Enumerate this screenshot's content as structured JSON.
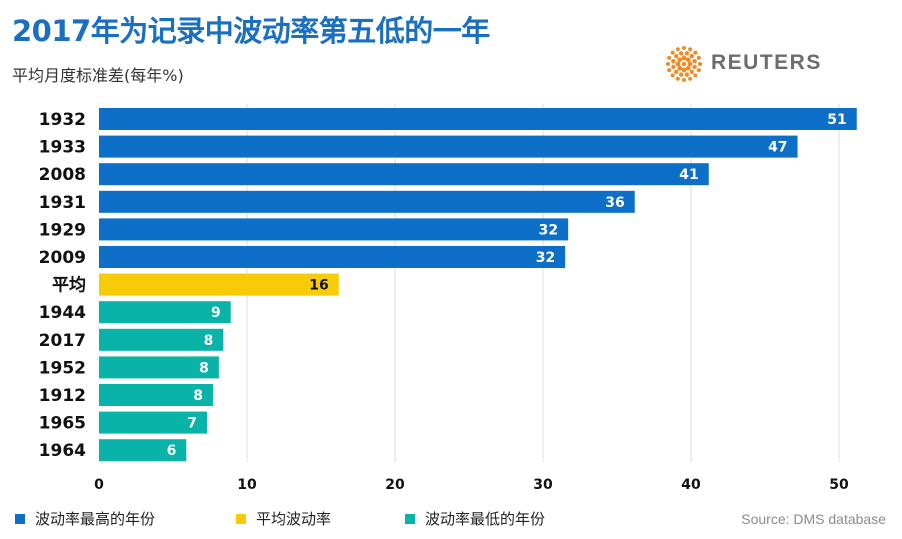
{
  "header": {
    "title": "2017年为记录中波动率第五低的一年",
    "subtitle": "平均月度标准差(每年%)"
  },
  "brand": {
    "logo_icon": "reuters-dots-icon",
    "name": "REUTERS"
  },
  "legend": {
    "items": [
      {
        "label": "波动率最高的年份",
        "color": "#0d6fc7"
      },
      {
        "label": "平均波动率",
        "color": "#f7cc06"
      },
      {
        "label": "波动率最低的年份",
        "color": "#0ab3a8"
      }
    ]
  },
  "source": "Source: DMS database",
  "chart_data": {
    "type": "bar",
    "orientation": "horizontal",
    "title": "2017年为记录中波动率第五低的一年",
    "subtitle": "平均月度标准差(每年%)",
    "xlabel": "",
    "ylabel": "",
    "xlim": [
      0,
      52
    ],
    "xticks": [
      0,
      10,
      20,
      30,
      40,
      50
    ],
    "grid": true,
    "categories": [
      "1932",
      "1933",
      "2008",
      "1931",
      "1929",
      "2009",
      "平均",
      "1944",
      "2017",
      "1952",
      "1912",
      "1965",
      "1964"
    ],
    "values": [
      51.2,
      47.2,
      41.2,
      36.2,
      31.7,
      31.5,
      16.2,
      8.9,
      8.4,
      8.1,
      7.7,
      7.3,
      5.9
    ],
    "labels": [
      "51",
      "47",
      "41",
      "36",
      "32",
      "32",
      "16",
      "9",
      "8",
      "8",
      "8",
      "7",
      "6"
    ],
    "groups": [
      "high",
      "high",
      "high",
      "high",
      "high",
      "high",
      "avg",
      "low",
      "low",
      "low",
      "low",
      "low",
      "low"
    ],
    "group_colors": {
      "high": "#0d6fc7",
      "avg": "#f7cc06",
      "low": "#0ab3a8"
    }
  }
}
